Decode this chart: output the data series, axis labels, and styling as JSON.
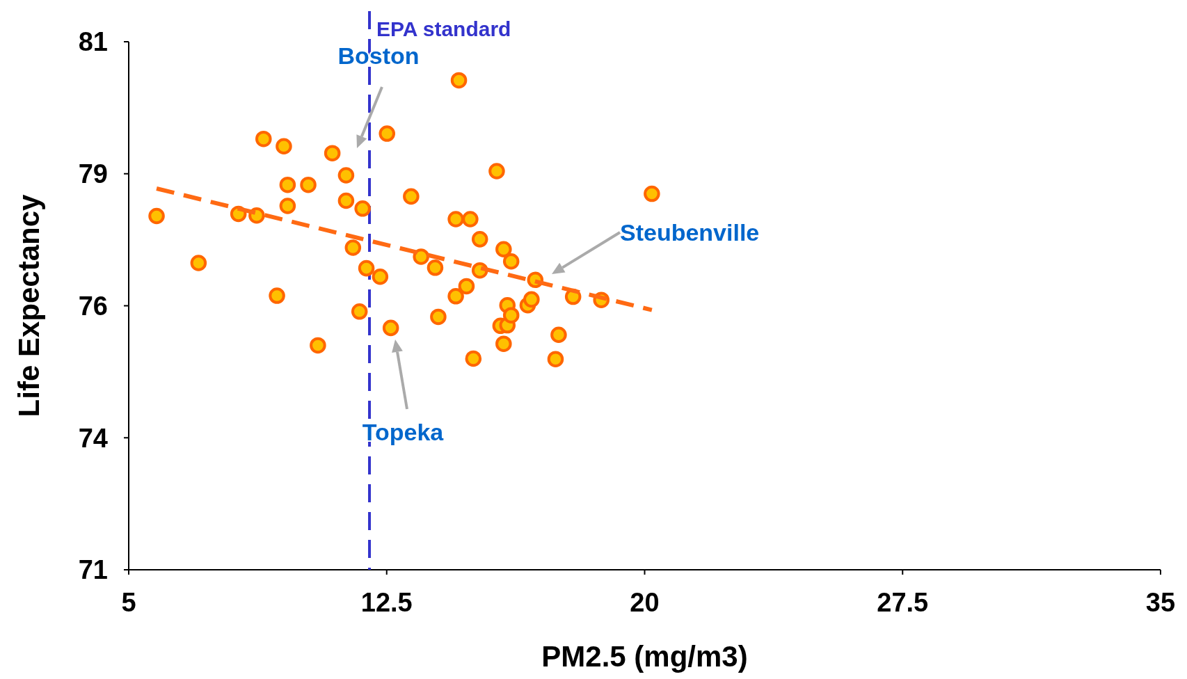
{
  "chart_data": {
    "type": "scatter",
    "xlabel": "PM2.5 (mg/m3)",
    "ylabel": "Life Expectancy",
    "xlim": [
      5,
      35
    ],
    "xticks": [
      5,
      12.5,
      20,
      27.5,
      35
    ],
    "ylim": [
      71,
      81
    ],
    "yticks": [
      71,
      {
        "value": 73.5,
        "label": "74"
      },
      76,
      {
        "value": 78.5,
        "label": "79"
      },
      81
    ],
    "grid": false,
    "series": [
      {
        "marker": "circle",
        "color": "#ffc000",
        "x": [
          5.81,
          7.03,
          8.19,
          8.72,
          8.92,
          9.31,
          9.51,
          9.62,
          9.62,
          10.22,
          10.5,
          10.92,
          11.32,
          11.32,
          11.52,
          11.71,
          11.8,
          11.91,
          12.31,
          12.51,
          12.62,
          13.21,
          13.5,
          13.91,
          14.0,
          14.51,
          14.51,
          14.6,
          14.82,
          14.93,
          15.02,
          15.21,
          15.21,
          15.7,
          15.81,
          15.9,
          15.9,
          16.01,
          16.01,
          16.12,
          16.12,
          16.6,
          16.71,
          16.82,
          17.41,
          17.5,
          17.92,
          18.74,
          20.21
        ],
        "values": [
          77.7,
          76.81,
          77.74,
          77.71,
          79.16,
          76.19,
          79.02,
          78.29,
          77.89,
          78.29,
          75.25,
          78.89,
          78.47,
          77.99,
          77.1,
          75.89,
          77.84,
          76.71,
          76.55,
          79.26,
          75.58,
          78.07,
          76.93,
          76.72,
          75.79,
          77.64,
          76.18,
          80.27,
          76.37,
          77.64,
          75.0,
          77.26,
          76.67,
          78.55,
          75.62,
          77.07,
          75.28,
          76.01,
          75.63,
          76.84,
          75.82,
          76.01,
          76.12,
          76.49,
          74.99,
          75.45,
          76.17,
          76.11,
          78.12
        ]
      },
      {
        "type": "line",
        "color": "#ff6a13",
        "line_style": "dashed",
        "x": [
          5.81,
          20.21
        ],
        "values": [
          78.22,
          75.92
        ]
      }
    ],
    "ref_lines": [
      {
        "axis": "x",
        "value": 12,
        "label": "EPA standard",
        "color": "#3333cc",
        "line_style": "dashed"
      }
    ],
    "annotations": [
      "Boston",
      "Steubenville",
      "Topeka"
    ]
  }
}
